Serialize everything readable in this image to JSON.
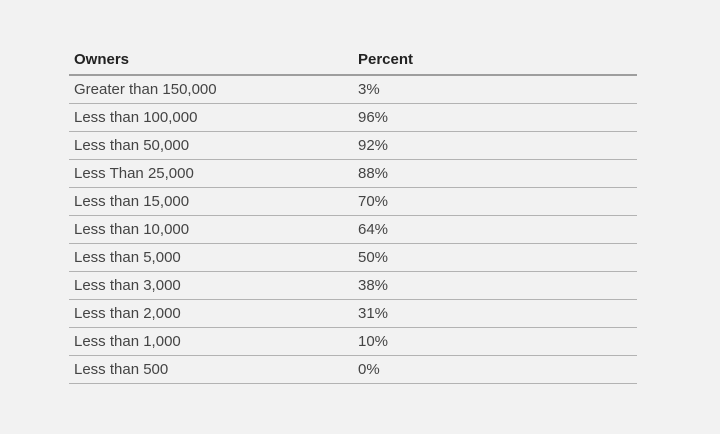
{
  "table": {
    "headers": [
      "Owners",
      "Percent"
    ],
    "rows": [
      [
        "Greater than 150,000",
        "3%"
      ],
      [
        "Less than 100,000",
        "96%"
      ],
      [
        "Less than 50,000",
        "92%"
      ],
      [
        "Less Than 25,000",
        "88%"
      ],
      [
        "Less than 15,000",
        "70%"
      ],
      [
        "Less than 10,000",
        "64%"
      ],
      [
        "Less than 5,000",
        "50%"
      ],
      [
        "Less than 3,000",
        "38%"
      ],
      [
        "Less than 2,000",
        "31%"
      ],
      [
        "Less than 1,000",
        "10%"
      ],
      [
        "Less than 500",
        "0%"
      ]
    ]
  },
  "colors": {
    "background": "#f2f2f2",
    "text": "#444444",
    "header_text": "#222222",
    "row_divider": "#b3b3b3",
    "header_divider": "#9e9e9e"
  }
}
